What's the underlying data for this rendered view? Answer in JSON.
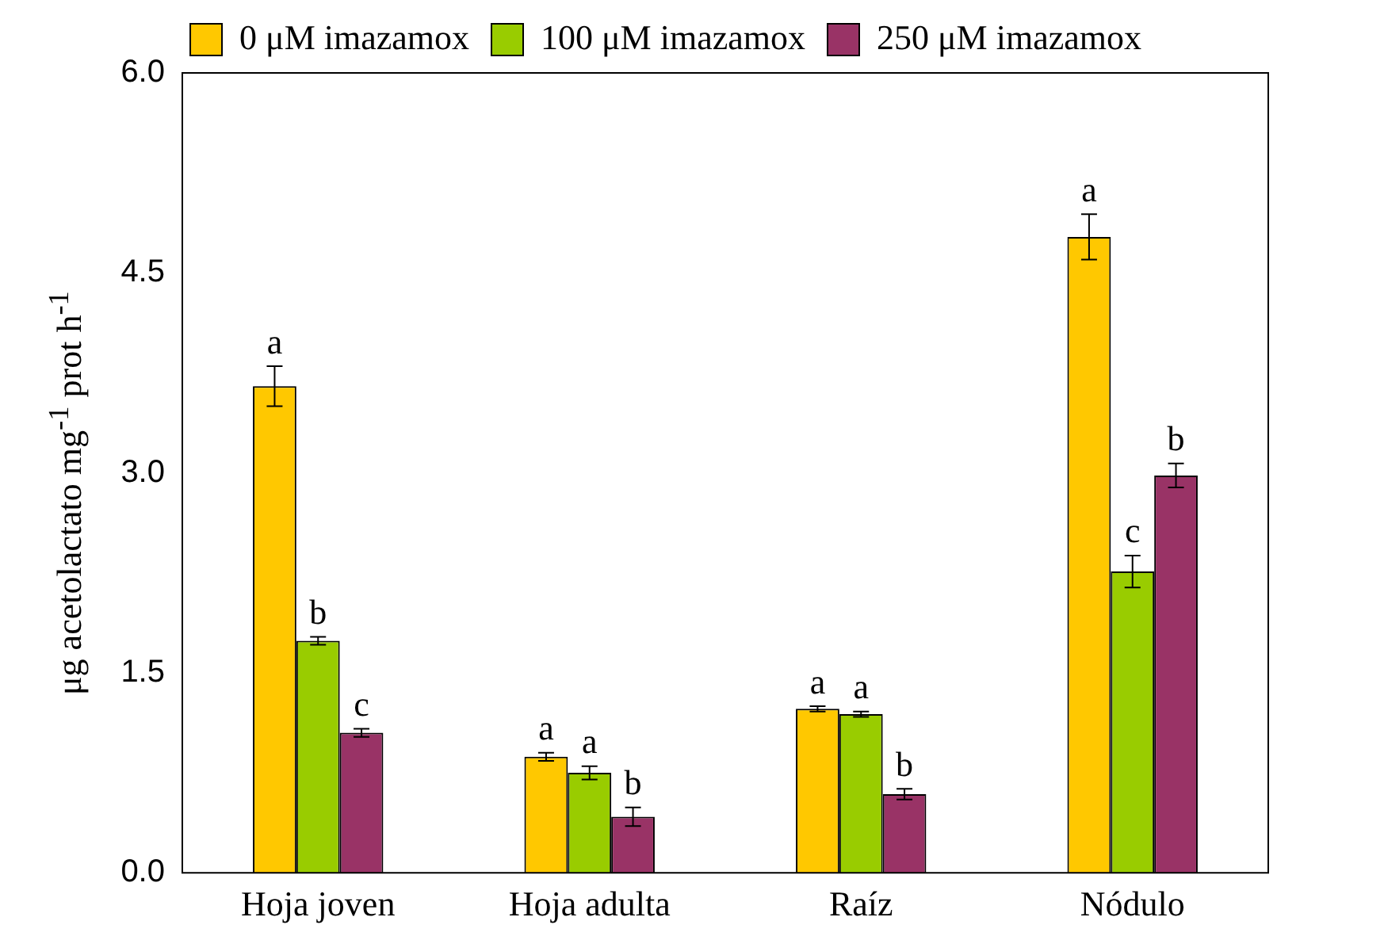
{
  "chart_data": {
    "type": "bar",
    "ylabel": "μg acetolactato mg$^{-1}$ prot h$^{-1}$",
    "categories": [
      "Hoja joven",
      "Hoja adulta",
      "Raíz",
      "Nódulo"
    ],
    "series": [
      {
        "name": "0 μM imazamox",
        "color": "#ffc800",
        "values": [
          3.65,
          0.87,
          1.23,
          4.77
        ],
        "errors": [
          0.15,
          0.03,
          0.02,
          0.17
        ],
        "value_labels": [
          "a",
          "a",
          "a",
          "a"
        ]
      },
      {
        "name": "100 μM imazamox",
        "color": "#99cc00",
        "values": [
          1.74,
          0.75,
          1.19,
          2.26
        ],
        "errors": [
          0.03,
          0.05,
          0.02,
          0.12
        ],
        "value_labels": [
          "b",
          "a",
          "a",
          "c"
        ]
      },
      {
        "name": "250 μM imazamox",
        "color": "#993366",
        "values": [
          1.05,
          0.42,
          0.59,
          2.98
        ],
        "errors": [
          0.03,
          0.07,
          0.04,
          0.09
        ],
        "value_labels": [
          "c",
          "b",
          "b",
          "b"
        ]
      }
    ],
    "ylim": [
      0,
      6
    ],
    "yticks": [
      {
        "value": 0,
        "label": "0.0"
      },
      {
        "value": 1.5,
        "label": "1.5"
      },
      {
        "value": 3,
        "label": "3.0"
      },
      {
        "value": 4.5,
        "label": "4.5"
      },
      {
        "value": 6,
        "label": "6.0"
      }
    ],
    "grid": false,
    "legend": "top"
  }
}
